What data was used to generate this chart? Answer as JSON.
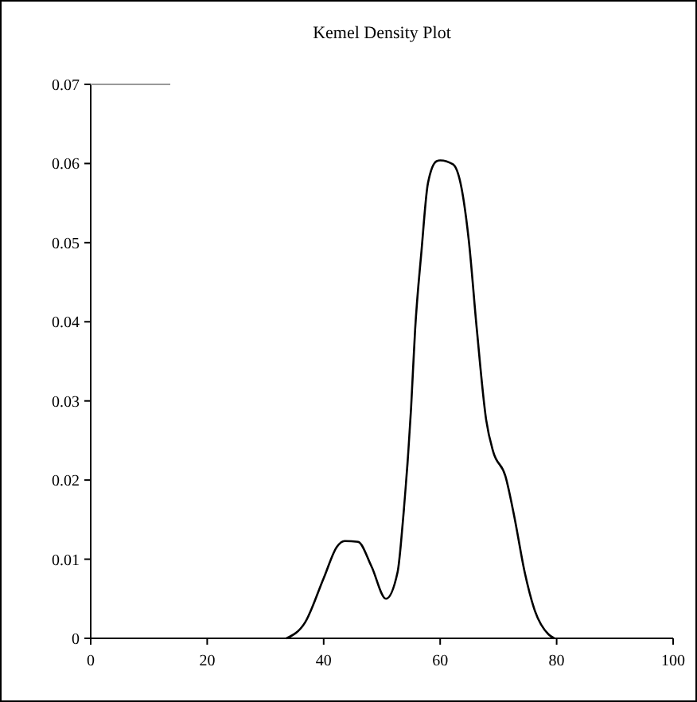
{
  "chart_data": {
    "type": "line",
    "title": "Kemel Density Plot",
    "x": [
      33.6,
      36.8,
      40,
      42.3,
      43.6,
      45.9,
      48.2,
      50.7,
      52.7,
      53.6,
      55,
      55.7,
      56.8,
      57.9,
      59.4,
      60,
      62.2,
      63.5,
      64.9,
      66.3,
      67.9,
      69.1,
      71.2,
      72.7,
      74.5,
      76.3,
      78.6,
      79.6
    ],
    "series": [
      {
        "color": "#000000",
        "values": [
          0,
          0.002,
          0.0076,
          0.0116,
          0.0123,
          0.0122,
          0.0091,
          0.005,
          0.0084,
          0.0148,
          0.029,
          0.039,
          0.049,
          0.0575,
          0.0603,
          0.0604,
          0.0599,
          0.0575,
          0.0504,
          0.039,
          0.0276,
          0.0236,
          0.0205,
          0.0155,
          0.0084,
          0.0034,
          0.0005,
          0
        ]
      }
    ],
    "xlim": [
      0,
      100
    ],
    "xticks": [
      0,
      20,
      40,
      60,
      80,
      100
    ],
    "ylim": [
      0,
      0.07
    ],
    "yticks": [
      0,
      0.01,
      0.02,
      0.03,
      0.04,
      0.05,
      0.06,
      0.07
    ],
    "grid": false,
    "marker": "none",
    "line_style": "solid"
  }
}
